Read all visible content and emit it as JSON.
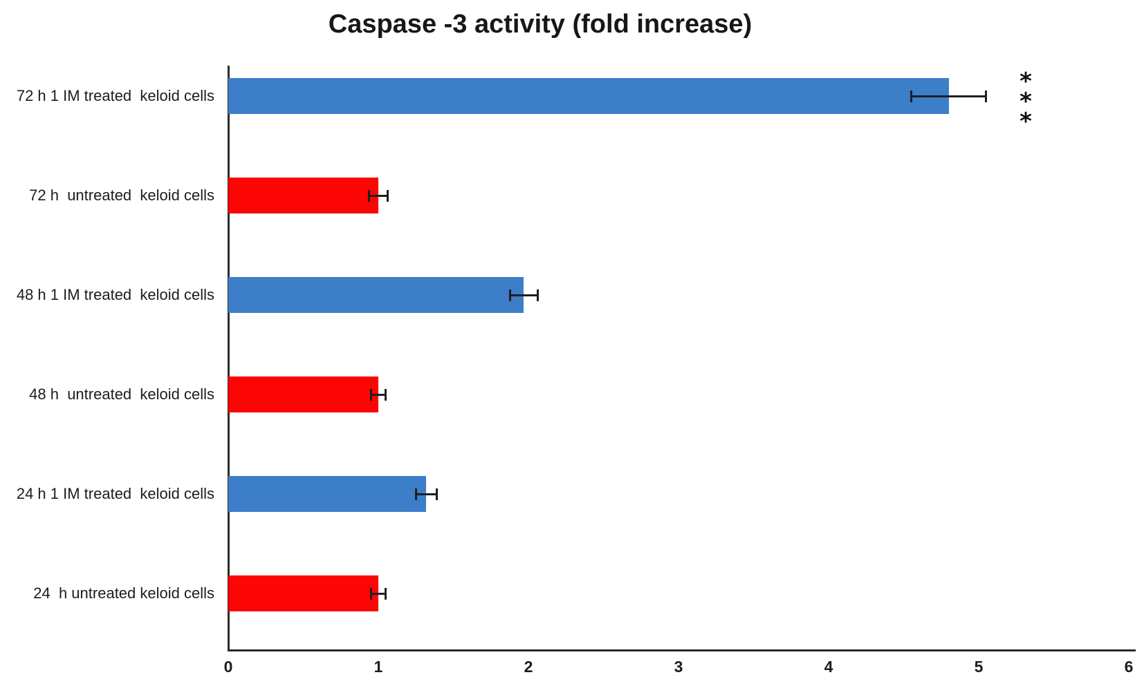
{
  "chart_data": {
    "type": "bar",
    "orientation": "horizontal",
    "title": "Caspase -3 activity (fold increase)",
    "categories": [
      "72 h 1 IM treated  keloid cells",
      "72 h  untreated  keloid cells",
      "48 h 1 IM treated  keloid cells",
      "48 h  untreated  keloid cells",
      "24 h 1 IM treated  keloid cells",
      "24  h untreated keloid cells"
    ],
    "values": [
      4.8,
      1.0,
      1.97,
      1.0,
      1.32,
      1.0
    ],
    "errors": [
      0.25,
      0.06,
      0.09,
      0.05,
      0.07,
      0.05
    ],
    "bar_colors": [
      "#3d7ec9",
      "#fb0505",
      "#3d7ec9",
      "#fb0505",
      "#3d7ec9",
      "#fb0505"
    ],
    "annotations": [
      "***",
      "",
      "",
      "",
      "",
      ""
    ],
    "xlabel": "",
    "ylabel": "",
    "xlim": [
      0,
      6
    ],
    "xticks": [
      "0",
      "1",
      "2",
      "3",
      "4",
      "5",
      "6"
    ],
    "grid": false,
    "legend_position": "none",
    "colors": {
      "treated_blue": "#3d7ec9",
      "untreated_red": "#fb0505",
      "axis": "#2b2b2b",
      "text": "#1c1c1c"
    }
  }
}
